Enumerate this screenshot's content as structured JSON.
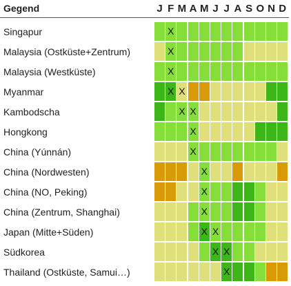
{
  "header": {
    "title": "Gegend",
    "months": [
      "J",
      "F",
      "M",
      "A",
      "M",
      "J",
      "J",
      "A",
      "S",
      "O",
      "N",
      "D"
    ]
  },
  "colors": {
    "G": "#3cb618",
    "L": "#86de3a",
    "Y": "#dfe07c",
    "O": "#d99a0a"
  },
  "mark_symbol": "X",
  "rows": [
    {
      "label": "Singapur",
      "cells": [
        "L",
        "L",
        "L",
        "L",
        "L",
        "L",
        "L",
        "L",
        "L",
        "L",
        "L",
        "L"
      ],
      "marks": [
        1
      ]
    },
    {
      "label": "Malaysia (Ostküste+Zentrum)",
      "cells": [
        "Y",
        "L",
        "L",
        "L",
        "L",
        "L",
        "L",
        "L",
        "Y",
        "Y",
        "Y",
        "Y"
      ],
      "marks": [
        1
      ]
    },
    {
      "label": "Malaysia (Westküste)",
      "cells": [
        "L",
        "L",
        "L",
        "L",
        "L",
        "L",
        "L",
        "L",
        "L",
        "L",
        "L",
        "L"
      ],
      "marks": [
        1
      ]
    },
    {
      "label": "Myanmar",
      "cells": [
        "G",
        "G",
        "Y",
        "O",
        "O",
        "Y",
        "Y",
        "Y",
        "Y",
        "Y",
        "G",
        "G"
      ],
      "marks": [
        1,
        2
      ]
    },
    {
      "label": "Kambodscha",
      "cells": [
        "G",
        "L",
        "L",
        "L",
        "Y",
        "Y",
        "Y",
        "Y",
        "Y",
        "Y",
        "Y",
        "G"
      ],
      "marks": [
        2,
        3
      ]
    },
    {
      "label": "Hongkong",
      "cells": [
        "L",
        "L",
        "L",
        "L",
        "Y",
        "Y",
        "Y",
        "Y",
        "Y",
        "G",
        "G",
        "G"
      ],
      "marks": [
        3
      ]
    },
    {
      "label": "China (Yúnnán)",
      "cells": [
        "Y",
        "Y",
        "Y",
        "L",
        "L",
        "L",
        "L",
        "L",
        "L",
        "L",
        "L",
        "Y"
      ],
      "marks": [
        3
      ]
    },
    {
      "label": "China (Nordwesten)",
      "cells": [
        "O",
        "O",
        "O",
        "Y",
        "L",
        "Y",
        "Y",
        "O",
        "Y",
        "Y",
        "Y",
        "O"
      ],
      "marks": [
        4
      ]
    },
    {
      "label": "China (NO, Peking)",
      "cells": [
        "O",
        "O",
        "Y",
        "Y",
        "L",
        "L",
        "L",
        "G",
        "G",
        "L",
        "Y",
        "Y"
      ],
      "marks": [
        4
      ]
    },
    {
      "label": "China (Zentrum, Shanghai)",
      "cells": [
        "Y",
        "Y",
        "Y",
        "L",
        "L",
        "L",
        "L",
        "G",
        "G",
        "L",
        "Y",
        "Y"
      ],
      "marks": [
        4
      ]
    },
    {
      "label": "Japan (Mitte+Süden)",
      "cells": [
        "Y",
        "Y",
        "Y",
        "L",
        "G",
        "L",
        "L",
        "L",
        "L",
        "L",
        "Y",
        "Y"
      ],
      "marks": [
        4,
        5
      ]
    },
    {
      "label": "Südkorea",
      "cells": [
        "Y",
        "Y",
        "Y",
        "Y",
        "L",
        "G",
        "G",
        "L",
        "L",
        "Y",
        "Y",
        "Y"
      ],
      "marks": [
        5,
        6
      ]
    },
    {
      "label": "Thailand (Ostküste, Samui…)",
      "cells": [
        "Y",
        "Y",
        "Y",
        "Y",
        "Y",
        "Y",
        "G",
        "G",
        "G",
        "L",
        "O",
        "O"
      ],
      "marks": [
        6
      ]
    }
  ]
}
